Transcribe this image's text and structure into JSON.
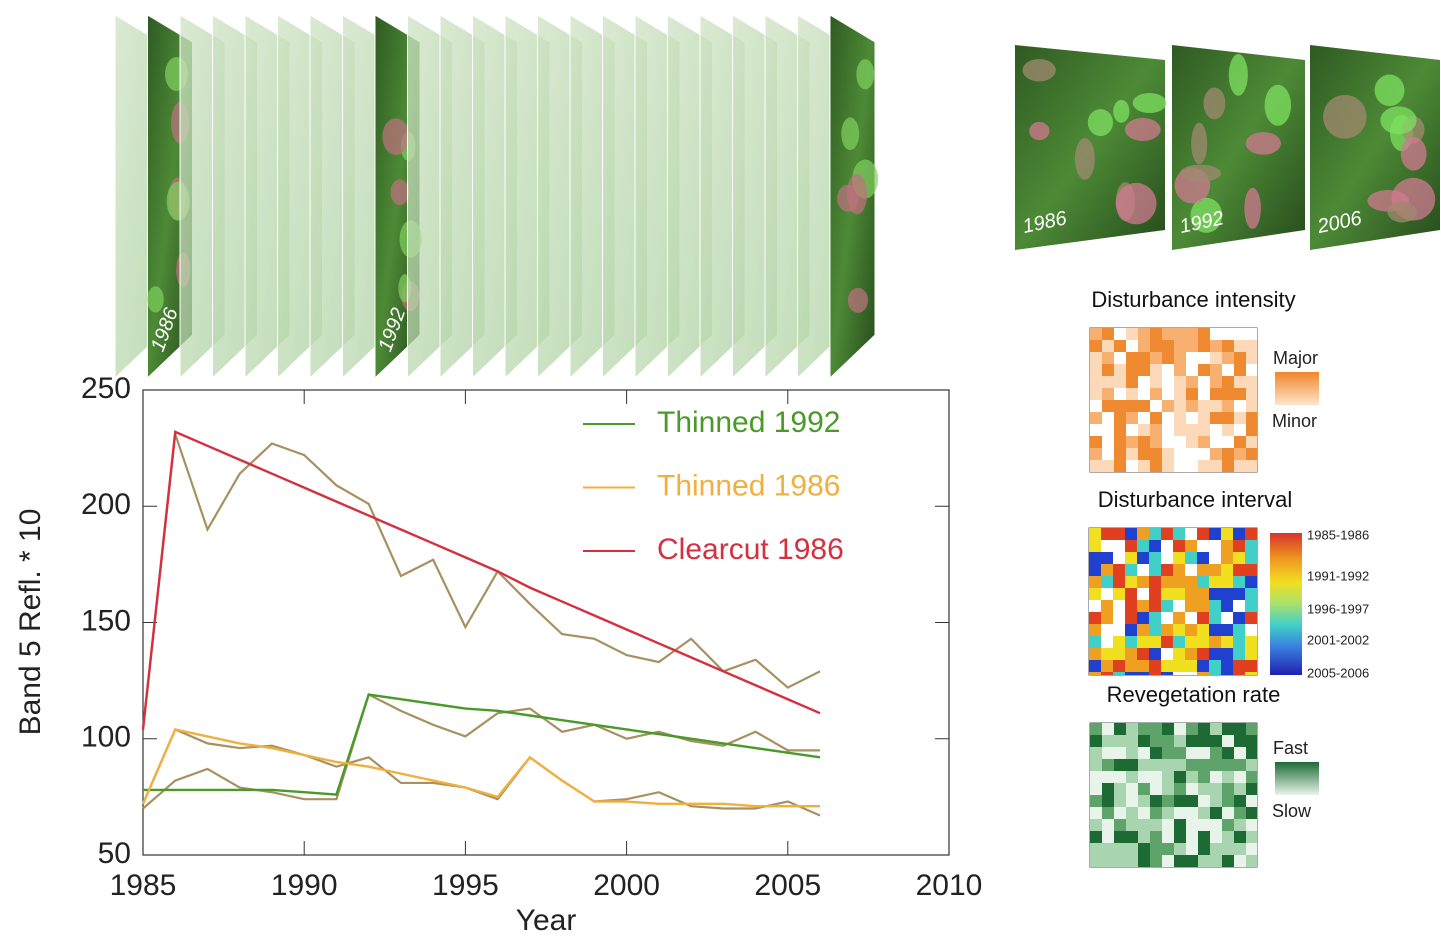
{
  "chart_data": {
    "type": "line",
    "x": [
      1985,
      1986,
      1987,
      1988,
      1989,
      1990,
      1991,
      1992,
      1993,
      1994,
      1995,
      1996,
      1997,
      1998,
      1999,
      2000,
      2001,
      2002,
      2003,
      2004,
      2005,
      2006
    ],
    "series": [
      {
        "name": "Thinned 1992",
        "color": "#4a9a2a",
        "values": [
          78,
          78,
          78,
          78,
          78,
          77,
          76,
          119,
          117,
          115,
          113,
          112,
          110,
          108,
          106,
          104,
          102,
          100,
          98,
          96,
          94,
          92
        ]
      },
      {
        "name": "Thinned 1986",
        "color": "#f0b040",
        "values": [
          72,
          104,
          101,
          98,
          96,
          93,
          90,
          88,
          85,
          82,
          79,
          75,
          92,
          82,
          73,
          73,
          72,
          72,
          72,
          71,
          71,
          71
        ]
      },
      {
        "name": "Clearcut 1986",
        "color": "#d43040",
        "values": [
          104,
          232,
          226,
          220,
          214,
          208,
          202,
          196,
          190,
          184,
          178,
          172,
          165,
          159,
          153,
          147,
          141,
          135,
          129,
          123,
          117,
          111
        ]
      }
    ],
    "traces": [
      {
        "color": "#a89060",
        "values": [
          70,
          82,
          87,
          79,
          77,
          74,
          74,
          119,
          112,
          106,
          101,
          111,
          113,
          103,
          106,
          100,
          103,
          99,
          97,
          103,
          95,
          95
        ]
      },
      {
        "color": "#a89060",
        "values": [
          72,
          104,
          98,
          96,
          97,
          93,
          88,
          92,
          81,
          81,
          79,
          74,
          92,
          82,
          73,
          74,
          77,
          71,
          70,
          70,
          73,
          67
        ]
      },
      {
        "color": "#a89060",
        "values": [
          104,
          231,
          190,
          214,
          227,
          222,
          209,
          201,
          170,
          177,
          148,
          172,
          158,
          145,
          143,
          136,
          133,
          143,
          129,
          134,
          122,
          129
        ]
      }
    ],
    "xlabel": "Year",
    "ylabel": "Band 5 Refl. * 10",
    "xlim": [
      1985,
      2010
    ],
    "ylim": [
      50,
      250
    ],
    "xticks": [
      1985,
      1990,
      1995,
      2000,
      2005,
      2010
    ],
    "yticks": [
      50,
      100,
      150,
      200,
      250
    ],
    "legend": "upper right"
  },
  "stack_labels": [
    "1986",
    "1992"
  ],
  "thumbnails": [
    "1986",
    "1992",
    "2006"
  ],
  "maps": [
    {
      "title": "Disturbance intensity",
      "high": "Major",
      "low": "Minor"
    },
    {
      "title": "Disturbance interval",
      "scale": [
        "1985-1986",
        "1991-1992",
        "1996-1997",
        "2001-2002",
        "2005-2006"
      ]
    },
    {
      "title": "Revegetation rate",
      "high": "Fast",
      "low": "Slow"
    }
  ]
}
